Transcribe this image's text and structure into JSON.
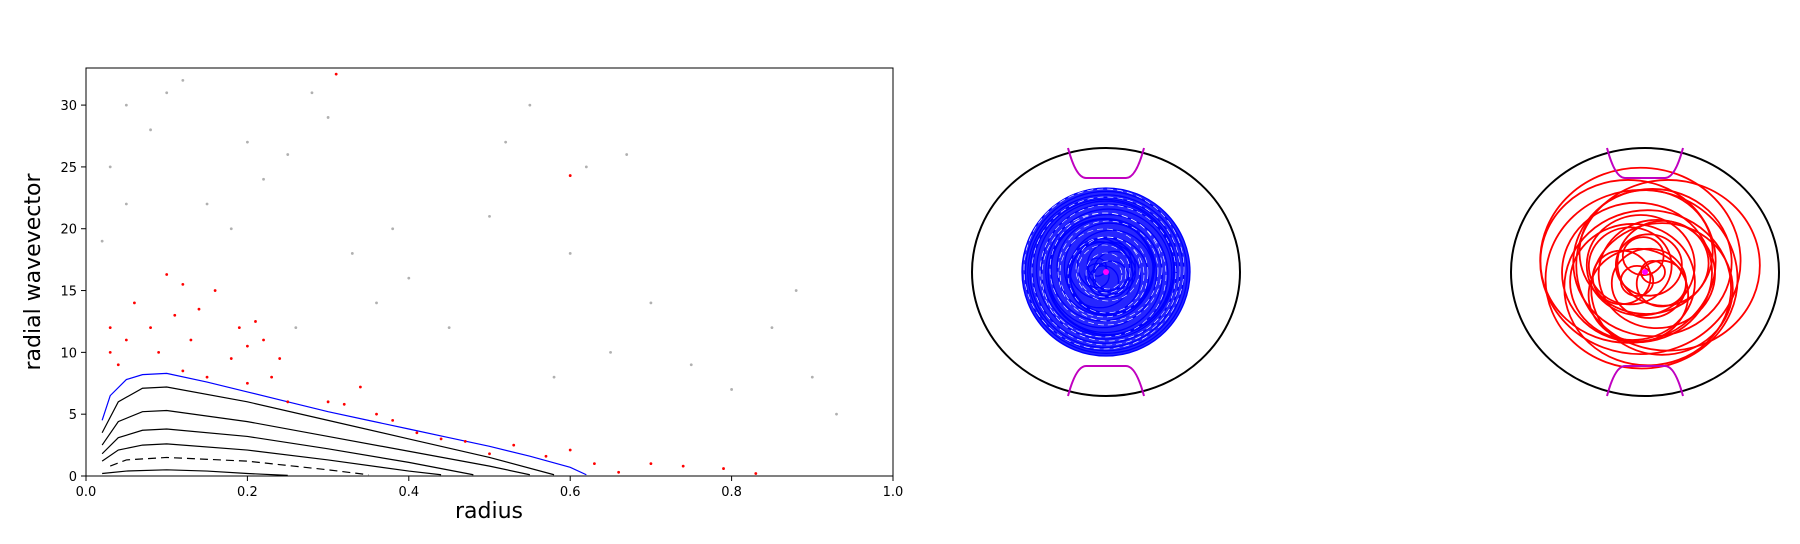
{
  "chart_data": {
    "type": "line",
    "x_label": "radius",
    "y_label": "radial wavevector",
    "xlim": [
      0,
      1
    ],
    "ylim": [
      0,
      33
    ],
    "xticks": [
      {
        "value": 0,
        "label": "0.0"
      },
      {
        "value": 0.2,
        "label": "0.2"
      },
      {
        "value": 0.4,
        "label": "0.4"
      },
      {
        "value": 0.6,
        "label": "0.6"
      },
      {
        "value": 0.8,
        "label": "0.8"
      },
      {
        "value": 1,
        "label": "1.0"
      }
    ],
    "yticks": [
      0,
      5,
      10,
      15,
      20,
      25,
      30
    ],
    "grid": false,
    "series": [
      {
        "kind": "scatter",
        "color": "#b0b0b0",
        "x": [
          0.02,
          0.03,
          0.05,
          0.08,
          0.12,
          0.15,
          0.18,
          0.2,
          0.22,
          0.25,
          0.28,
          0.3,
          0.33,
          0.36,
          0.4,
          0.45,
          0.5,
          0.52,
          0.55,
          0.58,
          0.62,
          0.65,
          0.7,
          0.75,
          0.8,
          0.85,
          0.9,
          0.93,
          0.05,
          0.1,
          0.26,
          0.38,
          0.6,
          0.67,
          0.88
        ],
        "values": [
          19,
          25,
          30,
          28,
          32,
          22,
          20,
          27,
          24,
          26,
          31,
          29,
          18,
          14,
          16,
          12,
          21,
          27,
          30,
          8,
          25,
          10,
          14,
          9,
          7,
          12,
          8,
          5,
          22,
          31,
          12,
          20,
          18,
          26,
          15
        ]
      },
      {
        "kind": "line",
        "color": "#000000",
        "x": [
          0.02,
          0.04,
          0.07,
          0.1,
          0.2,
          0.3,
          0.4,
          0.5,
          0.58
        ],
        "values": [
          3.5,
          6.0,
          7.1,
          7.2,
          6.0,
          4.5,
          3.0,
          1.5,
          0.1
        ]
      },
      {
        "kind": "line",
        "color": "#000000",
        "x": [
          0.02,
          0.04,
          0.07,
          0.1,
          0.2,
          0.3,
          0.4,
          0.5,
          0.55
        ],
        "values": [
          2.5,
          4.4,
          5.2,
          5.3,
          4.4,
          3.2,
          2.0,
          0.8,
          0.1
        ]
      },
      {
        "kind": "line",
        "color": "#000000",
        "x": [
          0.02,
          0.04,
          0.07,
          0.1,
          0.2,
          0.3,
          0.4,
          0.48
        ],
        "values": [
          1.8,
          3.1,
          3.7,
          3.8,
          3.2,
          2.2,
          1.1,
          0.1
        ]
      },
      {
        "kind": "line",
        "color": "#000000",
        "x": [
          0.02,
          0.04,
          0.07,
          0.1,
          0.2,
          0.3,
          0.4,
          0.44
        ],
        "values": [
          1.2,
          2.1,
          2.5,
          2.6,
          2.1,
          1.3,
          0.4,
          0.1
        ]
      },
      {
        "kind": "dashed",
        "color": "#000000",
        "x": [
          0.03,
          0.05,
          0.1,
          0.2,
          0.3,
          0.35
        ],
        "values": [
          0.8,
          1.3,
          1.5,
          1.2,
          0.5,
          0.1
        ]
      },
      {
        "kind": "line",
        "color": "#000000",
        "x": [
          0.02,
          0.05,
          0.1,
          0.15,
          0.2,
          0.25
        ],
        "values": [
          0.2,
          0.4,
          0.5,
          0.4,
          0.2,
          0.05
        ]
      },
      {
        "kind": "line",
        "color": "#0000ff",
        "x": [
          0.02,
          0.03,
          0.05,
          0.07,
          0.1,
          0.15,
          0.2,
          0.25,
          0.3,
          0.35,
          0.4,
          0.45,
          0.5,
          0.55,
          0.6,
          0.62
        ],
        "values": [
          4.5,
          6.5,
          7.8,
          8.2,
          8.3,
          7.6,
          6.8,
          6.0,
          5.2,
          4.5,
          3.8,
          3.1,
          2.4,
          1.6,
          0.7,
          0.1
        ]
      },
      {
        "kind": "scatter",
        "color": "#ff0000",
        "x": [
          0.03,
          0.03,
          0.04,
          0.05,
          0.06,
          0.08,
          0.09,
          0.1,
          0.11,
          0.12,
          0.13,
          0.14,
          0.16,
          0.18,
          0.19,
          0.2,
          0.21,
          0.22,
          0.23,
          0.24,
          0.12,
          0.15,
          0.2,
          0.25,
          0.3,
          0.32,
          0.34,
          0.36,
          0.38,
          0.41,
          0.44,
          0.47,
          0.5,
          0.53,
          0.57,
          0.6,
          0.63,
          0.66,
          0.7,
          0.74,
          0.79,
          0.83,
          0.31,
          0.6
        ],
        "values": [
          12,
          10,
          9,
          11,
          14,
          12,
          10,
          16.3,
          13,
          15.5,
          11,
          13.5,
          15,
          9.5,
          12,
          10.5,
          12.5,
          11,
          8,
          9.5,
          8.5,
          8,
          7.5,
          6,
          6,
          5.8,
          7.2,
          5,
          4.5,
          3.5,
          3,
          2.8,
          1.8,
          2.5,
          1.6,
          2.1,
          1,
          0.3,
          1,
          0.8,
          0.6,
          0.2,
          32.5,
          24.3
        ]
      }
    ]
  }
}
